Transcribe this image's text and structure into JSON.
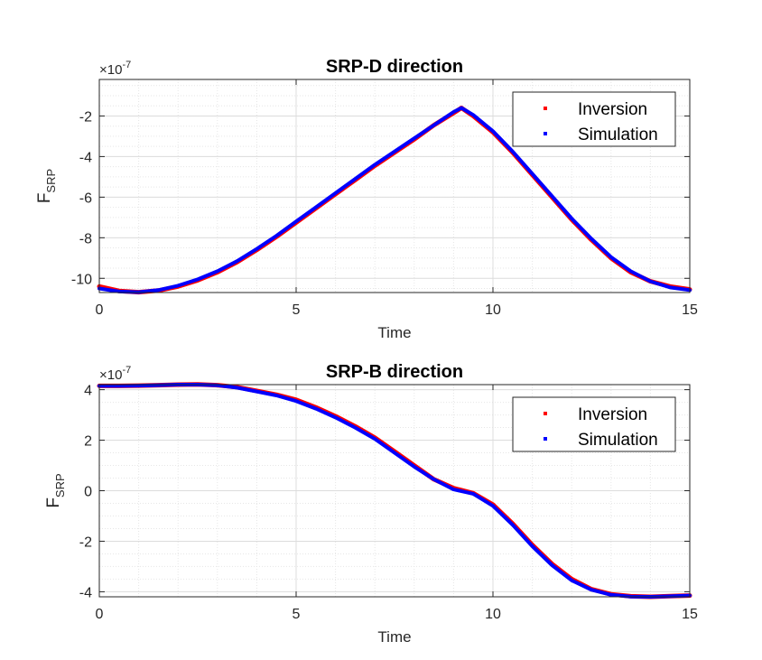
{
  "chart_data": [
    {
      "type": "line",
      "title": "SRP-D direction",
      "xlabel": "Time",
      "ylabel": "F",
      "ylabel_sub": "SRP",
      "exponent_label": "×10",
      "exponent_power": "-7",
      "xlim": [
        0,
        15
      ],
      "ylim": [
        -10.7,
        -0.2
      ],
      "xticks": [
        0,
        5,
        10,
        15
      ],
      "yticks": [
        -10,
        -8,
        -6,
        -4,
        -2
      ],
      "grid": true,
      "minor_grid": true,
      "legend_position": "top-right",
      "series": [
        {
          "name": "Inversion",
          "color": "#ff0000",
          "x": [
            0,
            0.5,
            1,
            1.5,
            2,
            2.5,
            3,
            3.5,
            4,
            4.5,
            5,
            5.5,
            6,
            6.5,
            7,
            7.5,
            8,
            8.5,
            9,
            9.2,
            9.5,
            10,
            10.5,
            11,
            11.5,
            12,
            12.5,
            13,
            13.5,
            14,
            14.5,
            15
          ],
          "y": [
            -10.4,
            -10.62,
            -10.68,
            -10.6,
            -10.4,
            -10.1,
            -9.7,
            -9.2,
            -8.6,
            -7.95,
            -7.25,
            -6.55,
            -5.85,
            -5.15,
            -4.45,
            -3.8,
            -3.15,
            -2.45,
            -1.85,
            -1.6,
            -2.0,
            -2.8,
            -3.8,
            -4.9,
            -6.0,
            -7.1,
            -8.1,
            -9.0,
            -9.7,
            -10.15,
            -10.4,
            -10.55
          ]
        },
        {
          "name": "Simulation",
          "color": "#0000ff",
          "x": [
            0,
            0.5,
            1,
            1.5,
            2,
            2.5,
            3,
            3.5,
            4,
            4.5,
            5,
            5.5,
            6,
            6.5,
            7,
            7.5,
            8,
            8.5,
            9,
            9.2,
            9.5,
            10,
            10.5,
            11,
            11.5,
            12,
            12.5,
            13,
            13.5,
            14,
            14.5,
            15
          ],
          "y": [
            -10.5,
            -10.65,
            -10.68,
            -10.58,
            -10.36,
            -10.05,
            -9.65,
            -9.15,
            -8.55,
            -7.9,
            -7.2,
            -6.5,
            -5.8,
            -5.1,
            -4.4,
            -3.75,
            -3.1,
            -2.45,
            -1.8,
            -1.6,
            -1.95,
            -2.75,
            -3.75,
            -4.85,
            -5.95,
            -7.05,
            -8.05,
            -8.95,
            -9.65,
            -10.15,
            -10.45,
            -10.58
          ]
        }
      ]
    },
    {
      "type": "line",
      "title": "SRP-B direction",
      "xlabel": "Time",
      "ylabel": "F",
      "ylabel_sub": "SRP",
      "exponent_label": "×10",
      "exponent_power": "-7",
      "xlim": [
        0,
        15
      ],
      "ylim": [
        -4.2,
        4.2
      ],
      "xticks": [
        0,
        5,
        10,
        15
      ],
      "yticks": [
        -4,
        -2,
        0,
        2,
        4
      ],
      "grid": true,
      "minor_grid": true,
      "legend_position": "top-right",
      "series": [
        {
          "name": "Inversion",
          "color": "#ff0000",
          "x": [
            0,
            0.5,
            1,
            1.5,
            2,
            2.5,
            3,
            3.5,
            4,
            4.5,
            5,
            5.5,
            6,
            6.5,
            7,
            7.5,
            8,
            8.5,
            9,
            9.5,
            10,
            10.5,
            11,
            11.5,
            12,
            12.5,
            13,
            13.5,
            14,
            14.5,
            15
          ],
          "y": [
            4.15,
            4.15,
            4.16,
            4.18,
            4.2,
            4.21,
            4.18,
            4.1,
            3.95,
            3.8,
            3.6,
            3.3,
            2.95,
            2.55,
            2.1,
            1.55,
            1.0,
            0.45,
            0.1,
            -0.1,
            -0.55,
            -1.3,
            -2.15,
            -2.9,
            -3.5,
            -3.9,
            -4.1,
            -4.18,
            -4.2,
            -4.17,
            -4.15
          ]
        },
        {
          "name": "Simulation",
          "color": "#0000ff",
          "x": [
            0,
            0.5,
            1,
            1.5,
            2,
            2.5,
            3,
            3.5,
            4,
            4.5,
            5,
            5.5,
            6,
            6.5,
            7,
            7.5,
            8,
            8.5,
            9,
            9.5,
            10,
            10.5,
            11,
            11.5,
            12,
            12.5,
            13,
            13.5,
            14,
            14.5,
            15
          ],
          "y": [
            4.15,
            4.15,
            4.16,
            4.18,
            4.2,
            4.2,
            4.17,
            4.08,
            3.93,
            3.77,
            3.55,
            3.25,
            2.9,
            2.5,
            2.05,
            1.5,
            0.95,
            0.45,
            0.05,
            -0.12,
            -0.6,
            -1.35,
            -2.2,
            -2.95,
            -3.55,
            -3.92,
            -4.12,
            -4.19,
            -4.2,
            -4.18,
            -4.15
          ]
        }
      ]
    }
  ]
}
